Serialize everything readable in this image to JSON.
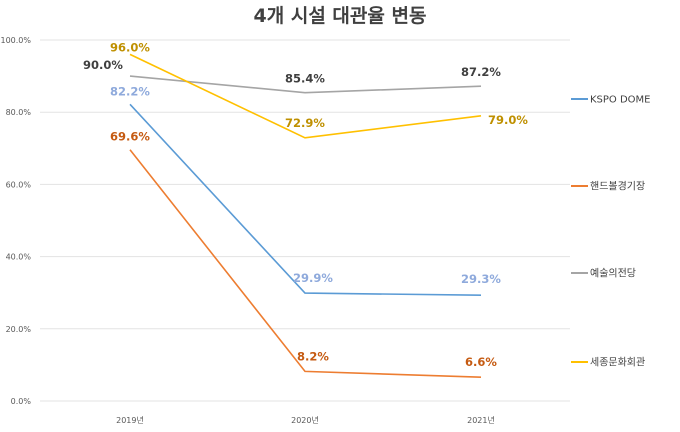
{
  "chart_data": {
    "type": "line",
    "title": "4개 시설 대관율 변동",
    "categories": [
      "2019년",
      "2020년",
      "2021년"
    ],
    "ylim": [
      0,
      100
    ],
    "yticks": [
      "0.0%",
      "20.0%",
      "40.0%",
      "60.0%",
      "80.0%",
      "100.0%"
    ],
    "grid": true,
    "legend_position": "right",
    "series": [
      {
        "name": "KSPO DOME",
        "values": [
          82.2,
          29.9,
          29.3
        ],
        "labels": [
          "82.2%",
          "29.9%",
          "29.3%"
        ],
        "color": "#5b9bd5",
        "label_color": "#8faadc"
      },
      {
        "name": "핸드볼경기장",
        "values": [
          69.6,
          8.2,
          6.6
        ],
        "labels": [
          "69.6%",
          "8.2%",
          "6.6%"
        ],
        "color": "#ed7d31",
        "label_color": "#c55a11"
      },
      {
        "name": "예술의전당",
        "values": [
          90.0,
          85.4,
          87.2
        ],
        "labels": [
          "90.0%",
          "85.4%",
          "87.2%"
        ],
        "color": "#a5a5a5",
        "label_color": "#404040"
      },
      {
        "name": "세종문화회관",
        "values": [
          96.0,
          72.9,
          79.0
        ],
        "labels": [
          "96.0%",
          "72.9%",
          "79.0%"
        ],
        "color": "#ffc000",
        "label_color": "#bf9000"
      }
    ]
  }
}
